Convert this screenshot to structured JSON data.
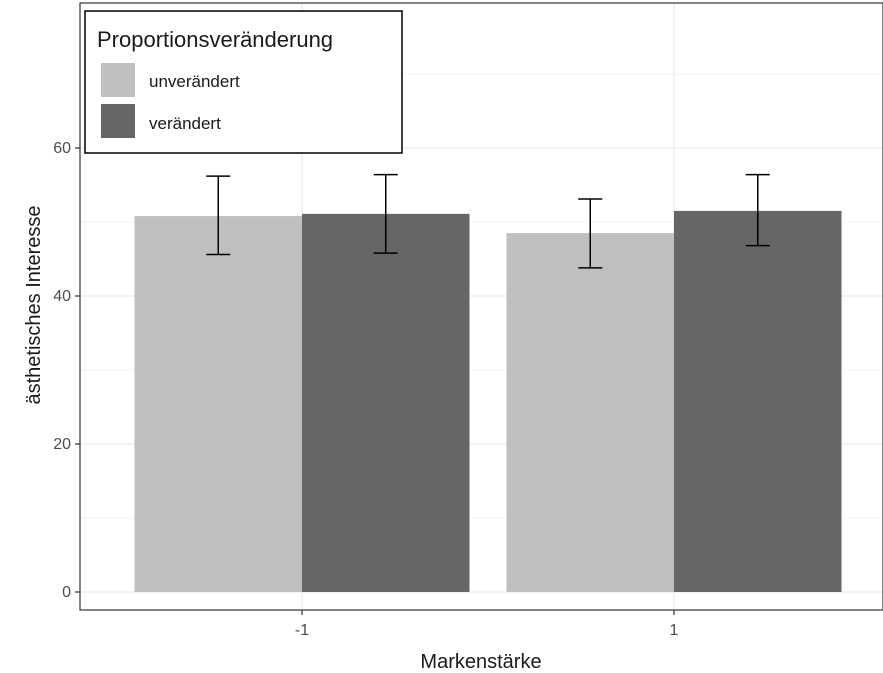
{
  "chart_data": {
    "type": "bar",
    "categories": [
      "-1",
      "1"
    ],
    "series": [
      {
        "name": "unverändert",
        "color": "#bfbfbf",
        "values": [
          50.8,
          48.5
        ],
        "error_low": [
          45.6,
          43.8
        ],
        "error_high": [
          56.2,
          53.1
        ]
      },
      {
        "name": "verändert",
        "color": "#666666",
        "values": [
          51.1,
          51.5
        ],
        "error_low": [
          45.8,
          46.8
        ],
        "error_high": [
          56.4,
          56.4
        ]
      }
    ],
    "title": "",
    "xlabel": "Markenstärke",
    "ylabel": "ästhetisches Interesse",
    "ylim": [
      0,
      78
    ],
    "yticks": [
      0,
      20,
      40,
      60
    ],
    "ytick_labels": [
      "0",
      "20",
      "40",
      "60"
    ],
    "grid": true,
    "legend": {
      "title": "Proportionsveränderung",
      "position": "top-left"
    }
  }
}
